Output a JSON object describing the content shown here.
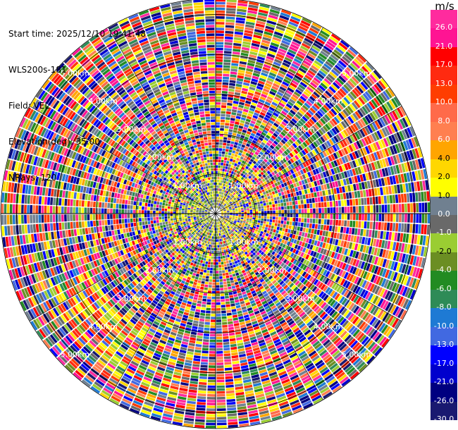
{
  "header": {
    "start_time": "Start time: 2025/12/10 19:41:48",
    "instrument": "WLS200s-181",
    "field": "Field: VEL",
    "elevation": "Elevation(deg): 35.00",
    "nrays": "NRays: 120"
  },
  "colorbar": {
    "unit": "m/s",
    "ticks": [
      "26.0",
      "21.0",
      "17.0",
      "13.0",
      "10.0",
      "8.0",
      "6.0",
      "4.0",
      "2.0",
      "1.0",
      "0.0",
      "-1.0",
      "-2.0",
      "-4.0",
      "-6.0",
      "-8.0",
      "-10.0",
      "-13.0",
      "-17.0",
      "-21.0",
      "-26.0",
      "-30.0"
    ],
    "colors": [
      "#ff2b9e",
      "#ff1493",
      "#ff0000",
      "#ff2a10",
      "#ff3d00",
      "#ff6a4a",
      "#ff7f50",
      "#ffa500",
      "#ffd700",
      "#ffff00",
      "#708090",
      "#696969",
      "#9acd32",
      "#6b8e23",
      "#228b22",
      "#2e8b57",
      "#1e7ad4",
      "#4169e1",
      "#0000ff",
      "#0000cd",
      "#000080",
      "#191970"
    ]
  },
  "chart_data": {
    "type": "heatmap",
    "subtype": "polar-ppi",
    "field": "VEL",
    "nrays": 120,
    "range_ring_labels": [
      "1.00km",
      "2.00km",
      "3.00km",
      "4.00km",
      "5.00km"
    ],
    "range_ring_km": [
      1,
      2,
      3,
      4,
      5
    ],
    "max_range_km": 5.4,
    "pattern": "noisy velocity values; near-field (<1.5 km) mixed green/olive (west) and yellow/grey (east) values around 0 m/s; beyond ~1.5 km random saturated values spanning -30 to 26 m/s; yellow/orange band near southwest at 3.5-4.5 km"
  }
}
